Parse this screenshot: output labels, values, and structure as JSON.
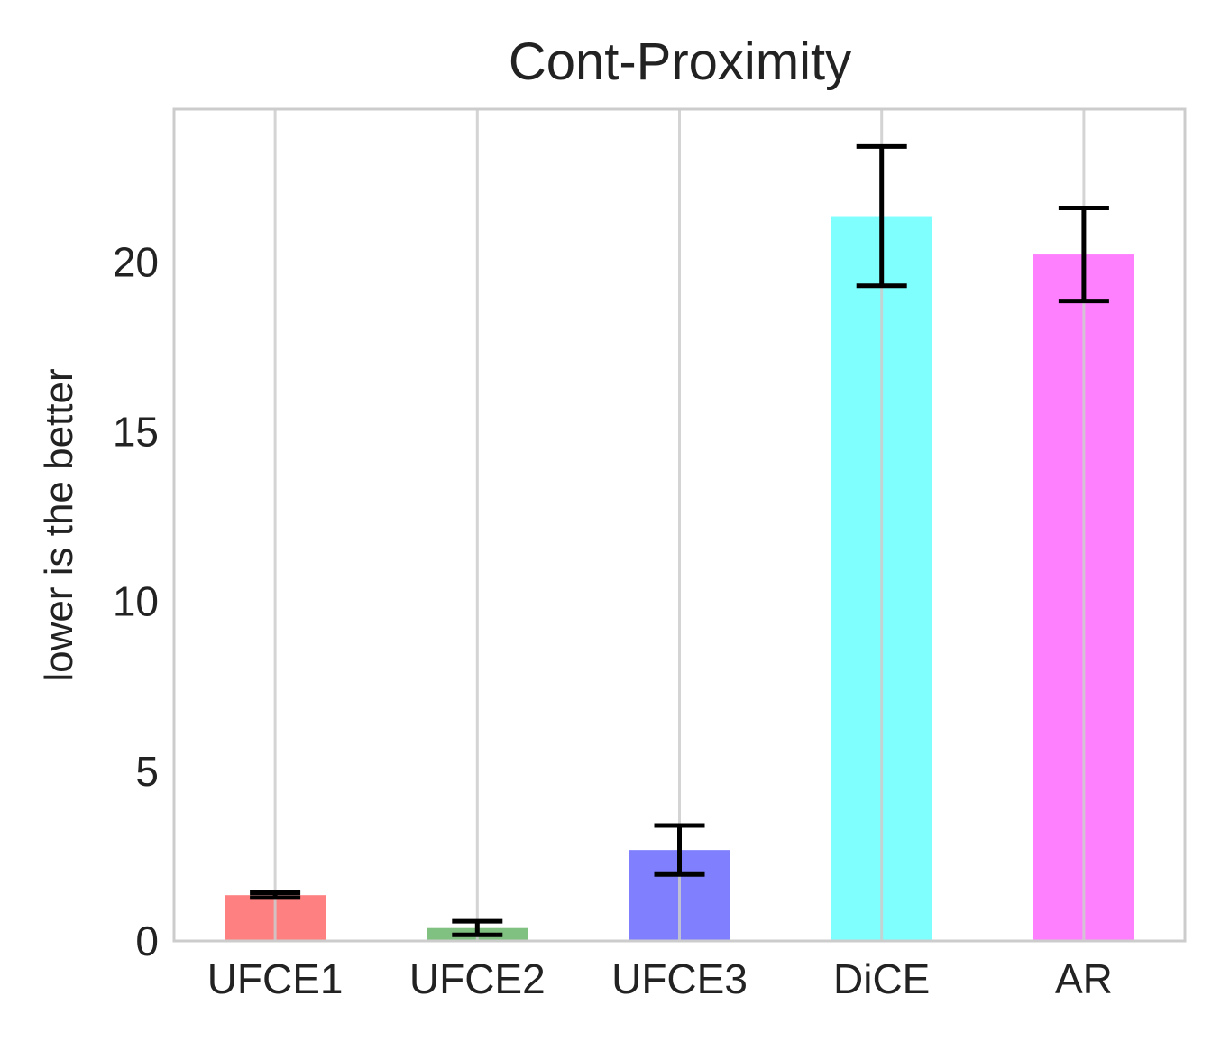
{
  "chart_data": {
    "type": "bar",
    "title": "Cont-Proximity",
    "xlabel": "",
    "ylabel": "lower is the better",
    "categories": [
      "UFCE1",
      "UFCE2",
      "UFCE3",
      "DiCE",
      "AR"
    ],
    "values": [
      1.35,
      0.38,
      2.68,
      21.35,
      20.22
    ],
    "errors": [
      0.07,
      0.2,
      0.72,
      2.05,
      1.37
    ],
    "colors": [
      "#ff8080",
      "#80c080",
      "#8080ff",
      "#80ffff",
      "#ff80ff"
    ],
    "ylim": [
      0,
      24.5
    ],
    "yticks": [
      0,
      5,
      10,
      15,
      20
    ],
    "grid": "vertical"
  }
}
